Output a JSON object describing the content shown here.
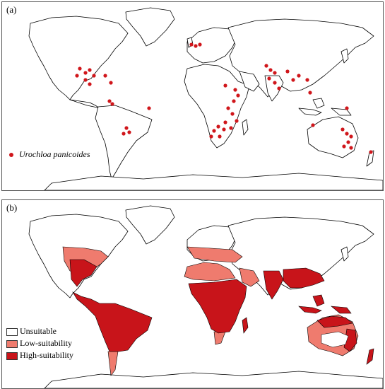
{
  "panel_a": {
    "label": "(a)",
    "legend_label": "Urochloa panicoides",
    "point_color": "#d0161b"
  },
  "panel_b": {
    "label": "(b)",
    "legend": [
      {
        "label": "Unsuitable",
        "color": "#ffffff"
      },
      {
        "label": "Low-suitability",
        "color": "#ef7b6e"
      },
      {
        "label": "High-suitability",
        "color": "#c8141a"
      }
    ]
  },
  "colors": {
    "border": "#000000",
    "ocean": "#ffffff"
  }
}
